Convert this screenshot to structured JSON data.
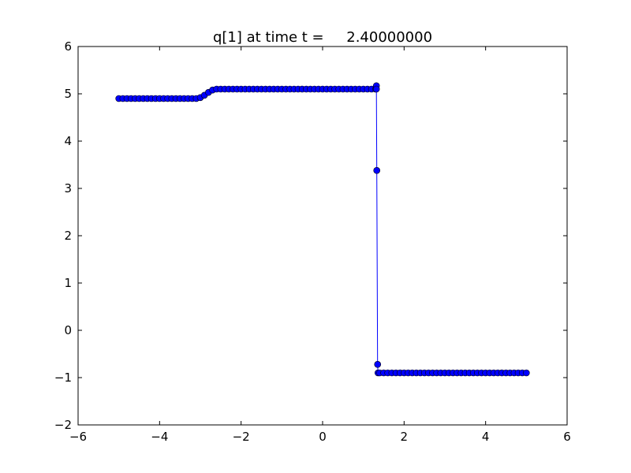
{
  "chart_data": {
    "type": "line",
    "title": "q[1] at time t =     2.40000000",
    "xlabel": "",
    "ylabel": "",
    "xlim": [
      -6,
      6
    ],
    "ylim": [
      -2,
      6
    ],
    "xticks": [
      -6,
      -4,
      -2,
      0,
      2,
      4,
      6
    ],
    "yticks": [
      -2,
      -1,
      0,
      1,
      2,
      3,
      4,
      5,
      6
    ],
    "xtick_labels": [
      "−6",
      "−4",
      "−2",
      "0",
      "2",
      "4",
      "6"
    ],
    "ytick_labels": [
      "−2",
      "−1",
      "0",
      "1",
      "2",
      "3",
      "4",
      "5",
      "6"
    ],
    "grid": false,
    "line_color": "#0000ff",
    "marker": "circle",
    "marker_color": "#0000ff",
    "marker_edge_color": "#000000",
    "series": [
      {
        "points": [
          [
            -5,
            4.9
          ],
          [
            -4.9,
            4.9
          ],
          [
            -4.8,
            4.9
          ],
          [
            -4.7,
            4.9
          ],
          [
            -4.6,
            4.9
          ],
          [
            -4.5,
            4.9
          ],
          [
            -4.4,
            4.9
          ],
          [
            -4.3,
            4.9
          ],
          [
            -4.2,
            4.9
          ],
          [
            -4.1,
            4.9
          ],
          [
            -4,
            4.9
          ],
          [
            -3.9,
            4.9
          ],
          [
            -3.8,
            4.9
          ],
          [
            -3.7,
            4.9
          ],
          [
            -3.6,
            4.9
          ],
          [
            -3.5,
            4.9
          ],
          [
            -3.4,
            4.9
          ],
          [
            -3.3,
            4.9
          ],
          [
            -3.2,
            4.9
          ],
          [
            -3.1,
            4.9
          ],
          [
            -3,
            4.92
          ],
          [
            -2.9,
            4.97
          ],
          [
            -2.8,
            5.03
          ],
          [
            -2.7,
            5.08
          ],
          [
            -2.6,
            5.1
          ],
          [
            -2.5,
            5.1
          ],
          [
            -2.4,
            5.1
          ],
          [
            -2.3,
            5.1
          ],
          [
            -2.2,
            5.1
          ],
          [
            -2.1,
            5.1
          ],
          [
            -2,
            5.1
          ],
          [
            -1.9,
            5.1
          ],
          [
            -1.8,
            5.1
          ],
          [
            -1.7,
            5.1
          ],
          [
            -1.6,
            5.1
          ],
          [
            -1.5,
            5.1
          ],
          [
            -1.4,
            5.1
          ],
          [
            -1.3,
            5.1
          ],
          [
            -1.2,
            5.1
          ],
          [
            -1.1,
            5.1
          ],
          [
            -1,
            5.1
          ],
          [
            -0.9,
            5.1
          ],
          [
            -0.8,
            5.1
          ],
          [
            -0.7,
            5.1
          ],
          [
            -0.6,
            5.1
          ],
          [
            -0.5,
            5.1
          ],
          [
            -0.4,
            5.1
          ],
          [
            -0.3,
            5.1
          ],
          [
            -0.2,
            5.1
          ],
          [
            -0.1,
            5.1
          ],
          [
            0,
            5.1
          ],
          [
            0.1,
            5.1
          ],
          [
            0.2,
            5.1
          ],
          [
            0.3,
            5.1
          ],
          [
            0.4,
            5.1
          ],
          [
            0.5,
            5.1
          ],
          [
            0.6,
            5.1
          ],
          [
            0.7,
            5.1
          ],
          [
            0.8,
            5.1
          ],
          [
            0.9,
            5.1
          ],
          [
            1,
            5.1
          ],
          [
            1.1,
            5.1
          ],
          [
            1.2,
            5.1
          ],
          [
            1.3,
            5.1
          ],
          [
            1.32,
            5.17
          ],
          [
            1.32,
            5.1
          ],
          [
            1.33,
            3.38
          ],
          [
            1.35,
            -0.72
          ],
          [
            1.36,
            -0.9
          ],
          [
            1.4,
            -0.9
          ],
          [
            1.5,
            -0.9
          ],
          [
            1.6,
            -0.9
          ],
          [
            1.7,
            -0.9
          ],
          [
            1.8,
            -0.9
          ],
          [
            1.9,
            -0.9
          ],
          [
            2,
            -0.9
          ],
          [
            2.1,
            -0.9
          ],
          [
            2.2,
            -0.9
          ],
          [
            2.3,
            -0.9
          ],
          [
            2.4,
            -0.9
          ],
          [
            2.5,
            -0.9
          ],
          [
            2.6,
            -0.9
          ],
          [
            2.7,
            -0.9
          ],
          [
            2.8,
            -0.9
          ],
          [
            2.9,
            -0.9
          ],
          [
            3,
            -0.9
          ],
          [
            3.1,
            -0.9
          ],
          [
            3.2,
            -0.9
          ],
          [
            3.3,
            -0.9
          ],
          [
            3.4,
            -0.9
          ],
          [
            3.5,
            -0.9
          ],
          [
            3.6,
            -0.9
          ],
          [
            3.7,
            -0.9
          ],
          [
            3.8,
            -0.9
          ],
          [
            3.9,
            -0.9
          ],
          [
            4,
            -0.9
          ],
          [
            4.1,
            -0.9
          ],
          [
            4.2,
            -0.9
          ],
          [
            4.3,
            -0.9
          ],
          [
            4.4,
            -0.9
          ],
          [
            4.5,
            -0.9
          ],
          [
            4.6,
            -0.9
          ],
          [
            4.7,
            -0.9
          ],
          [
            4.8,
            -0.9
          ],
          [
            4.9,
            -0.9
          ],
          [
            5,
            -0.9
          ]
        ]
      }
    ]
  }
}
